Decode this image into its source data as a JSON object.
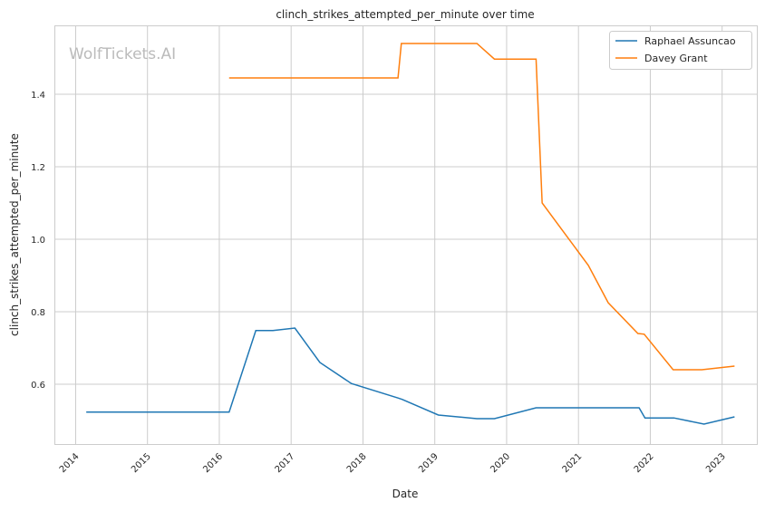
{
  "chart_data": {
    "type": "line",
    "title": "clinch_strikes_attempted_per_minute over time",
    "xlabel": "Date",
    "ylabel": "clinch_strikes_attempted_per_minute",
    "watermark": "WolfTickets.AI",
    "xlim": [
      "2013-09-15",
      "2023-07-01"
    ],
    "ylim": [
      0.435,
      1.59
    ],
    "x_ticks": [
      "2014",
      "2015",
      "2016",
      "2017",
      "2018",
      "2019",
      "2020",
      "2021",
      "2022",
      "2023"
    ],
    "y_ticks": [
      0.6,
      0.8,
      1.0,
      1.2,
      1.4
    ],
    "grid": true,
    "legend_position": "top-right",
    "series": [
      {
        "name": "Raphael Assuncao",
        "color": "#1f77b4",
        "points": [
          [
            "2014-02-24",
            0.523
          ],
          [
            "2016-02-20",
            0.523
          ],
          [
            "2016-07-05",
            0.748
          ],
          [
            "2016-09-30",
            0.748
          ],
          [
            "2017-01-20",
            0.755
          ],
          [
            "2017-05-27",
            0.66
          ],
          [
            "2017-11-03",
            0.602
          ],
          [
            "2018-06-28",
            0.562
          ],
          [
            "2018-07-20",
            0.558
          ],
          [
            "2019-01-19",
            0.515
          ],
          [
            "2019-08-03",
            0.505
          ],
          [
            "2019-10-31",
            0.505
          ],
          [
            "2020-05-30",
            0.535
          ],
          [
            "2021-11-05",
            0.535
          ],
          [
            "2021-12-05",
            0.507
          ],
          [
            "2022-05-01",
            0.507
          ],
          [
            "2022-10-01",
            0.49
          ],
          [
            "2023-03-05",
            0.51
          ]
        ]
      },
      {
        "name": "Davey Grant",
        "color": "#ff7f0e",
        "points": [
          [
            "2016-02-20",
            1.445
          ],
          [
            "2018-06-28",
            1.445
          ],
          [
            "2018-07-15",
            1.54
          ],
          [
            "2019-08-03",
            1.54
          ],
          [
            "2019-10-31",
            1.497
          ],
          [
            "2020-05-30",
            1.497
          ],
          [
            "2020-06-30",
            1.1
          ],
          [
            "2021-02-20",
            0.928
          ],
          [
            "2021-06-01",
            0.825
          ],
          [
            "2021-10-30",
            0.74
          ],
          [
            "2021-12-01",
            0.738
          ],
          [
            "2022-04-27",
            0.64
          ],
          [
            "2022-09-20",
            0.64
          ],
          [
            "2023-03-05",
            0.65
          ]
        ]
      }
    ]
  }
}
